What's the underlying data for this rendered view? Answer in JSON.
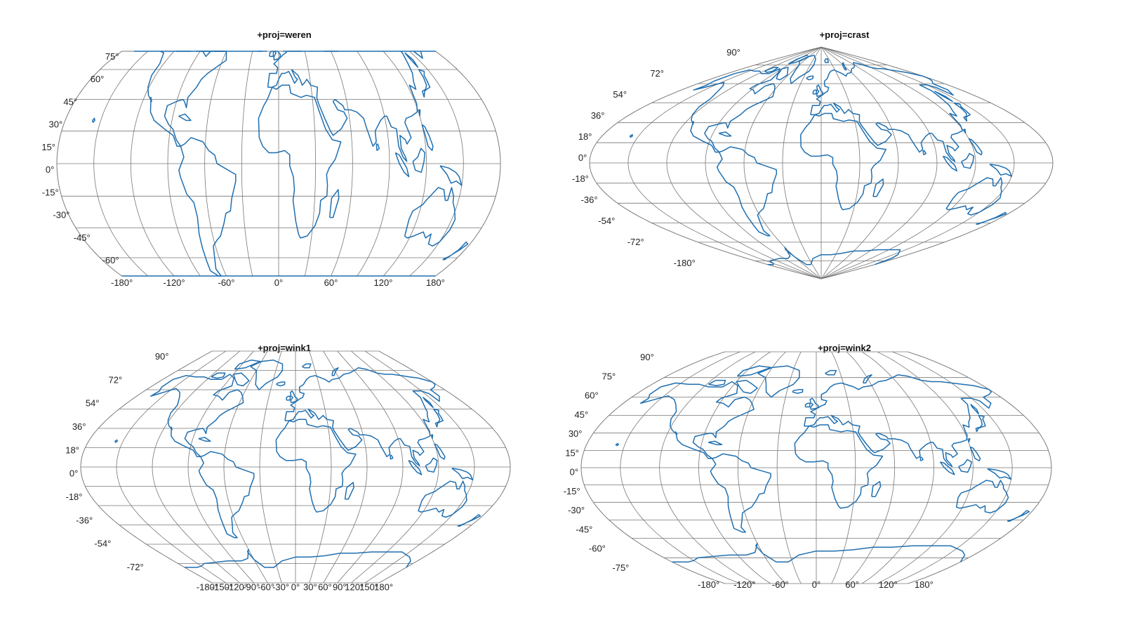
{
  "colors": {
    "coastline": "#1f6fb0",
    "graticule": "#777777",
    "text": "#222222"
  },
  "panels": [
    {
      "title": "+proj=weren",
      "projection": "weren",
      "lat_labels": [
        "75°",
        "60°",
        "45°",
        "30°",
        "15°",
        "0°",
        "-15°",
        "-30°",
        "-45°",
        "-60°"
      ],
      "lon_labels": [
        "-180°",
        "-120°",
        "-60°",
        "0°",
        "60°",
        "120°",
        "180°"
      ]
    },
    {
      "title": "+proj=crast",
      "projection": "crast",
      "lat_labels": [
        "90°",
        "72°",
        "54°",
        "36°",
        "18°",
        "0°",
        "-18°",
        "-36°",
        "-54°",
        "-72°",
        "-180°"
      ],
      "lon_labels": []
    },
    {
      "title": "+proj=wink1",
      "projection": "wink1",
      "lat_labels": [
        "90°",
        "72°",
        "54°",
        "36°",
        "18°",
        "0°",
        "-18°",
        "-36°",
        "-54°",
        "-72°"
      ],
      "lon_labels": [
        "-180°",
        "-150°",
        "-120°",
        "-90°",
        "-60°",
        "-30°",
        "0°",
        "30°",
        "60°",
        "90°",
        "120°",
        "150°",
        "180°"
      ]
    },
    {
      "title": "+proj=wink2",
      "projection": "wink2",
      "lat_labels": [
        "90°",
        "75°",
        "60°",
        "45°",
        "30°",
        "15°",
        "0°",
        "-15°",
        "-30°",
        "-45°",
        "-60°",
        "-75°"
      ],
      "lon_labels": [
        "-180°",
        "-120°",
        "-60°",
        "0°",
        "60°",
        "120°",
        "180°"
      ]
    }
  ]
}
